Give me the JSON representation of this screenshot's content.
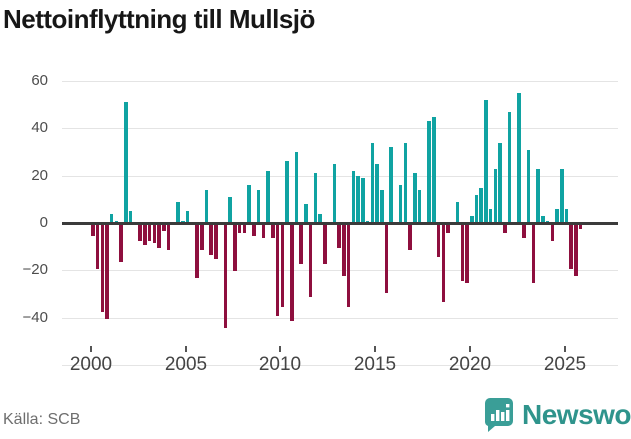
{
  "title": "Nettoinflyttning till Mullsjö",
  "footer": {
    "source": "Källa: SCB",
    "brand": "Newsworthy"
  },
  "colors": {
    "positive": "#10a3a2",
    "negative": "#8e0f3e",
    "axis_line": "#3b3b3b",
    "gridline": "#e4e4e4",
    "brand_teal": "#2f948c",
    "badge_teal": "#3a9e97"
  },
  "chart_data": {
    "type": "bar",
    "title": "Nettoinflyttning till Mullsjö",
    "x_unit": "quarter",
    "start": "2000-Q1",
    "end": "2025-Q4",
    "xlabel": "",
    "ylabel": "",
    "ylim": [
      -60,
      60
    ],
    "grid": true,
    "y_axis_ticks": [
      60,
      40,
      20,
      0,
      -20,
      -40
    ],
    "y_gridline_values": [
      60,
      40,
      20,
      -20,
      -40,
      -60
    ],
    "x_axis_ticks": [
      "2000",
      "2005",
      "2010",
      "2015",
      "2020",
      "2025"
    ],
    "x_tick_years": [
      2000,
      2005,
      2010,
      2015,
      2020,
      2025
    ],
    "series_name": "Nettoinflyttning",
    "values": [
      -5,
      -19,
      -37,
      -40,
      4,
      1,
      -16,
      51,
      5,
      0,
      -7,
      -9,
      -7,
      -8,
      -10,
      -3,
      -11,
      0,
      9,
      1,
      5,
      0,
      -23,
      -11,
      14,
      -13,
      -15,
      0,
      -44,
      11,
      -20,
      -4,
      -4,
      16,
      -5,
      14,
      -6,
      22,
      -6,
      -39,
      -35,
      26,
      -41,
      30,
      -17,
      8,
      -31,
      21,
      4,
      -17,
      0,
      25,
      -10,
      -22,
      -35,
      22,
      20,
      19,
      1,
      34,
      25,
      14,
      -29,
      32,
      0,
      16,
      34,
      -11,
      21,
      14,
      0,
      43,
      45,
      -14,
      -33,
      -4,
      0,
      9,
      -24,
      -25,
      3,
      12,
      15,
      52,
      6,
      23,
      34,
      -4,
      47,
      0,
      55,
      -6,
      31,
      -25,
      23,
      3,
      1,
      -7,
      6,
      23,
      6,
      -19,
      -22,
      -2
    ]
  }
}
